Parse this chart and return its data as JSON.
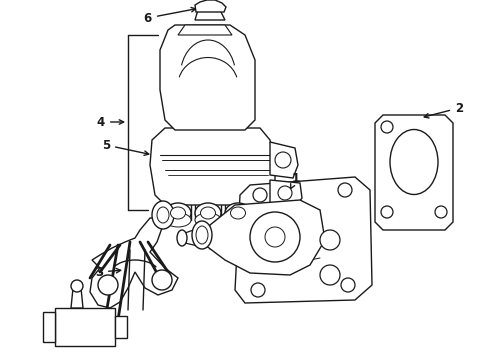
{
  "background_color": "#ffffff",
  "line_color": "#1a1a1a",
  "line_width": 1.0,
  "label_fontsize": 8.5,
  "fig_width": 4.89,
  "fig_height": 3.6,
  "dpi": 100
}
